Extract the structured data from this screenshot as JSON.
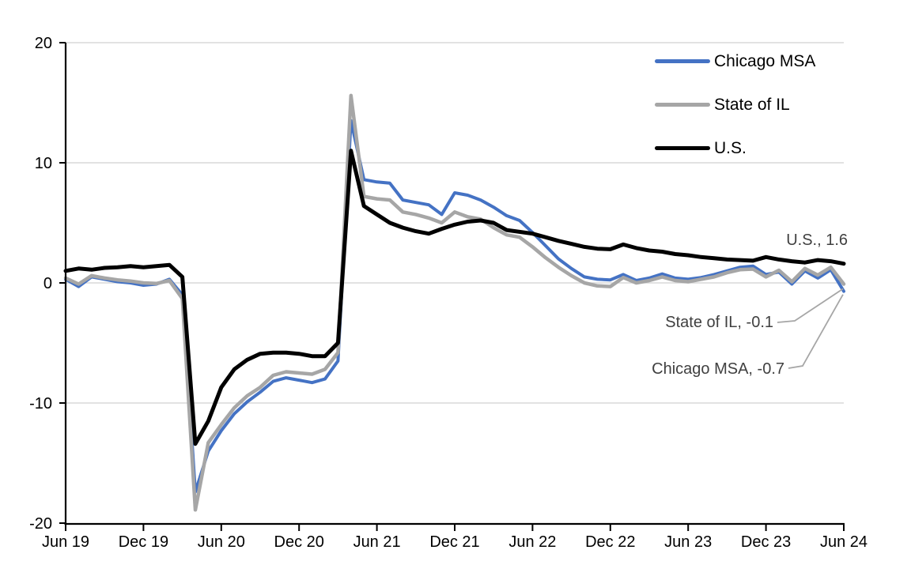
{
  "chart_data": {
    "type": "line",
    "title": "",
    "xlabel": "",
    "ylabel": "",
    "ylim": [
      -20,
      20
    ],
    "y_ticks": [
      20,
      10,
      0,
      -10,
      -20
    ],
    "x_axis_ticks": [
      "Jun 19",
      "Dec 19",
      "Jun 20",
      "Dec 20",
      "Jun 21",
      "Dec 21",
      "Jun 22",
      "Dec 22",
      "Jun 23",
      "Dec 23",
      "Jun 24"
    ],
    "grid": "horizontal",
    "legend_position": "top-right",
    "x_months": [
      "Jun 2019",
      "Jul 2019",
      "Aug 2019",
      "Sep 2019",
      "Oct 2019",
      "Nov 2019",
      "Dec 2019",
      "Jan 2020",
      "Feb 2020",
      "Mar 2020",
      "Apr 2020",
      "May 2020",
      "Jun 2020",
      "Jul 2020",
      "Aug 2020",
      "Sep 2020",
      "Oct 2020",
      "Nov 2020",
      "Dec 2020",
      "Jan 2021",
      "Feb 2021",
      "Mar 2021",
      "Apr 2021",
      "May 2021",
      "Jun 2021",
      "Jul 2021",
      "Aug 2021",
      "Sep 2021",
      "Oct 2021",
      "Nov 2021",
      "Dec 2021",
      "Jan 2022",
      "Feb 2022",
      "Mar 2022",
      "Apr 2022",
      "May 2022",
      "Jun 2022",
      "Jul 2022",
      "Aug 2022",
      "Sep 2022",
      "Oct 2022",
      "Nov 2022",
      "Dec 2022",
      "Jan 2023",
      "Feb 2023",
      "Mar 2023",
      "Apr 2023",
      "May 2023",
      "Jun 2023",
      "Jul 2023",
      "Aug 2023",
      "Sep 2023",
      "Oct 2023",
      "Nov 2023",
      "Dec 2023",
      "Jan 2024",
      "Feb 2024",
      "Mar 2024",
      "Apr 2024",
      "May 2024",
      "Jun 2024"
    ],
    "series": [
      {
        "name": "Chicago MSA",
        "color": "#4472C4",
        "stroke_width": 4,
        "values": [
          0.3,
          -0.3,
          0.5,
          0.3,
          0.1,
          0.0,
          -0.2,
          -0.1,
          0.3,
          -1.0,
          -17.4,
          -14.0,
          -12.3,
          -10.9,
          -9.9,
          -9.1,
          -8.2,
          -7.9,
          -8.1,
          -8.3,
          -8.0,
          -6.5,
          13.5,
          8.6,
          8.4,
          8.3,
          6.9,
          6.7,
          6.5,
          5.7,
          7.5,
          7.3,
          6.9,
          6.3,
          5.6,
          5.2,
          4.2,
          3.1,
          2.0,
          1.2,
          0.5,
          0.3,
          0.25,
          0.7,
          0.2,
          0.4,
          0.75,
          0.4,
          0.3,
          0.45,
          0.7,
          1.0,
          1.3,
          1.4,
          0.7,
          0.9,
          -0.1,
          1.0,
          0.4,
          1.1,
          -0.7
        ]
      },
      {
        "name": "State of IL",
        "color": "#A6A6A6",
        "stroke_width": 4.5,
        "values": [
          0.4,
          -0.1,
          0.6,
          0.4,
          0.25,
          0.15,
          0.0,
          -0.05,
          0.2,
          -1.3,
          -18.9,
          -13.3,
          -11.8,
          -10.4,
          -9.4,
          -8.7,
          -7.7,
          -7.4,
          -7.5,
          -7.6,
          -7.2,
          -5.8,
          15.6,
          7.2,
          7.0,
          6.9,
          5.9,
          5.7,
          5.4,
          5.0,
          5.9,
          5.5,
          5.3,
          4.6,
          4.0,
          3.8,
          3.0,
          2.1,
          1.3,
          0.6,
          0.0,
          -0.25,
          -0.3,
          0.45,
          0.0,
          0.2,
          0.5,
          0.2,
          0.1,
          0.3,
          0.5,
          0.85,
          1.1,
          1.15,
          0.5,
          1.05,
          0.1,
          1.2,
          0.65,
          1.3,
          -0.1
        ]
      },
      {
        "name": "U.S.",
        "color": "#000000",
        "stroke_width": 5,
        "values": [
          1.0,
          1.2,
          1.1,
          1.25,
          1.3,
          1.4,
          1.3,
          1.4,
          1.5,
          0.5,
          -13.4,
          -11.5,
          -8.7,
          -7.2,
          -6.4,
          -5.9,
          -5.8,
          -5.8,
          -5.9,
          -6.1,
          -6.1,
          -5.0,
          11.0,
          6.4,
          5.7,
          5.0,
          4.6,
          4.3,
          4.1,
          4.5,
          4.85,
          5.1,
          5.2,
          5.0,
          4.4,
          4.25,
          4.1,
          3.8,
          3.5,
          3.25,
          3.0,
          2.85,
          2.8,
          3.2,
          2.9,
          2.7,
          2.6,
          2.4,
          2.3,
          2.15,
          2.05,
          1.95,
          1.9,
          1.85,
          2.15,
          1.95,
          1.8,
          1.7,
          1.9,
          1.8,
          1.6
        ]
      }
    ],
    "annotations": [
      {
        "text": "U.S., 1.6",
        "series": "U.S.",
        "value": 1.6
      },
      {
        "text": "State of IL, -0.1",
        "series": "State of IL",
        "value": -0.1
      },
      {
        "text": "Chicago MSA, -0.7",
        "series": "Chicago MSA",
        "value": -0.7
      }
    ],
    "colors": {
      "gridline": "#D9D9D9",
      "axis": "#000000",
      "annotation_text": "#404040",
      "leader_line": "#A6A6A6"
    }
  },
  "legend": {
    "items": [
      {
        "label": "Chicago MSA"
      },
      {
        "label": "State of IL"
      },
      {
        "label": "U.S."
      }
    ]
  }
}
